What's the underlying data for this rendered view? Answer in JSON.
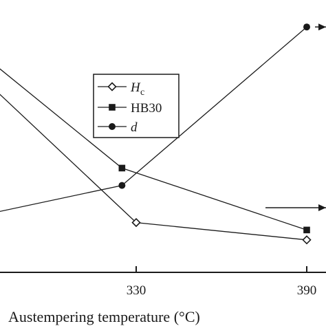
{
  "chart_data": {
    "type": "line",
    "xlabel": "Austempering temperature (°C)",
    "ylabel": "",
    "title": "",
    "x_tick_labels": [
      "330",
      "390"
    ],
    "x_tick_values": [
      330,
      390
    ],
    "xlim": [
      283,
      396
    ],
    "ylim": [
      0,
      100
    ],
    "grid": false,
    "legend_placement": "upper-center",
    "series": [
      {
        "name": "H",
        "name_subscript": "c",
        "marker": "open-diamond",
        "x": [
          280,
          330,
          390
        ],
        "y": [
          68,
          14,
          7
        ]
      },
      {
        "name": "HB30",
        "marker": "filled-square",
        "x": [
          280,
          325,
          390
        ],
        "y": [
          78,
          36,
          11
        ]
      },
      {
        "name": "d",
        "name_italic": true,
        "marker": "filled-circle",
        "x": [
          280,
          325,
          390
        ],
        "y": [
          18,
          29,
          93
        ]
      }
    ],
    "annotations": [
      {
        "type": "arrow",
        "direction": "right",
        "y": 93
      },
      {
        "type": "arrow",
        "direction": "right",
        "y": 20
      }
    ]
  }
}
